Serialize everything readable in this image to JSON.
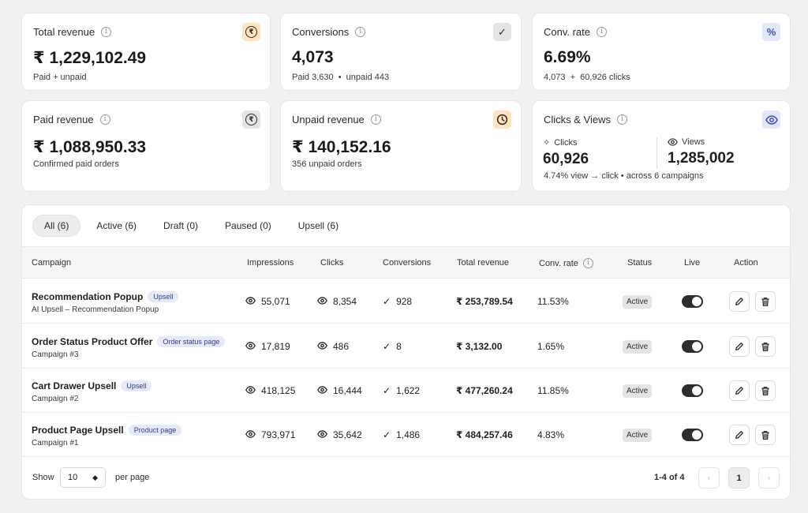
{
  "cards": {
    "total_revenue": {
      "title": "Total revenue",
      "value": "₹ 1,229,102.49",
      "sub": "Paid + unpaid",
      "icon": "rupee-icon"
    },
    "conversions": {
      "title": "Conversions",
      "value": "4,073",
      "sub": "Paid 3,630  •  unpaid 443",
      "icon": "check-icon"
    },
    "conv_rate": {
      "title": "Conv. rate",
      "value": "6.69%",
      "sub": "4,073  +  60,926 clicks",
      "icon": "percent-icon"
    },
    "paid_revenue": {
      "title": "Paid revenue",
      "value": "₹ 1,088,950.33",
      "sub": "Confirmed paid orders",
      "icon": "rupee-icon"
    },
    "unpaid_revenue": {
      "title": "Unpaid revenue",
      "value": "₹ 140,152.16",
      "sub": "356 unpaid orders",
      "icon": "clock-icon"
    },
    "clicks_views": {
      "title": "Clicks & Views",
      "clicks_label": "Clicks",
      "clicks_value": "60,926",
      "views_label": "Views",
      "views_value": "1,285,002",
      "sub": "4.74% view → click • across 6 campaigns",
      "icon": "eye-icon"
    }
  },
  "tabs": [
    "All (6)",
    "Active (6)",
    "Draft (0)",
    "Paused (0)",
    "Upsell (6)"
  ],
  "selected_tab": "All (6)",
  "table": {
    "headers": {
      "campaign": "Campaign",
      "impressions": "Impressions",
      "clicks": "Clicks",
      "conversions": "Conversions",
      "total_revenue": "Total revenue",
      "conv_rate": "Conv. rate",
      "status": "Status",
      "live": "Live",
      "action": "Action"
    },
    "rows": [
      {
        "name": "Recommendation Popup",
        "tag": "Upsell",
        "sub": "AI Upsell – Recommendation Popup",
        "impressions": "55,071",
        "clicks": "8,354",
        "conversions": "928",
        "revenue": "₹ 253,789.54",
        "conv_rate": "11.53%",
        "status": "Active",
        "live": true
      },
      {
        "name": "Order Status Product Offer",
        "tag": "Order status page",
        "sub": "Campaign #3",
        "impressions": "17,819",
        "clicks": "486",
        "conversions": "8",
        "revenue": "₹ 3,132.00",
        "conv_rate": "1.65%",
        "status": "Active",
        "live": true
      },
      {
        "name": "Cart Drawer Upsell",
        "tag": "Upsell",
        "sub": "Campaign #2",
        "impressions": "418,125",
        "clicks": "16,444",
        "conversions": "1,622",
        "revenue": "₹ 477,260.24",
        "conv_rate": "11.85%",
        "status": "Active",
        "live": true
      },
      {
        "name": "Product Page Upsell",
        "tag": "Product page",
        "sub": "Campaign #1",
        "impressions": "793,971",
        "clicks": "35,642",
        "conversions": "1,486",
        "revenue": "₹ 484,257.46",
        "conv_rate": "4.83%",
        "status": "Active",
        "live": true
      }
    ]
  },
  "footer": {
    "show_label": "Show",
    "per_page_value": "10",
    "per_page_label": "per page",
    "range": "1-4 of 4",
    "current_page": "1"
  }
}
